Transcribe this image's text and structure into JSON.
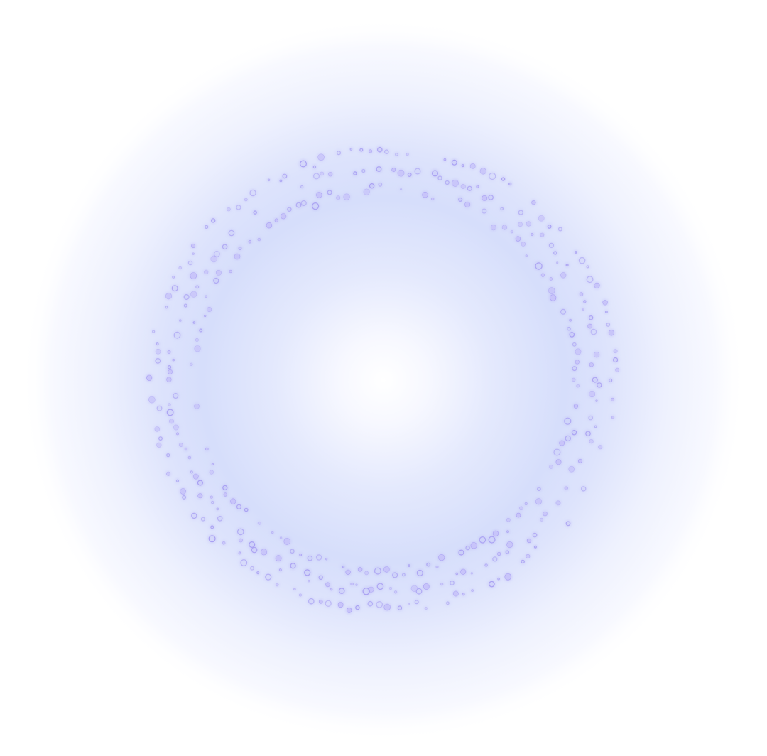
{
  "colors": {
    "background": "#ffffff",
    "glow_mid": "#d9e0fb",
    "glow_edge": "#eef1fe",
    "center": "#ffffff",
    "dot_fill": "#c8c4fa",
    "dot_stroke": "#a89ff2",
    "dot_glow": "#b6b0f6"
  },
  "icons": {
    "main": "glowing-dotted-ring-icon"
  }
}
